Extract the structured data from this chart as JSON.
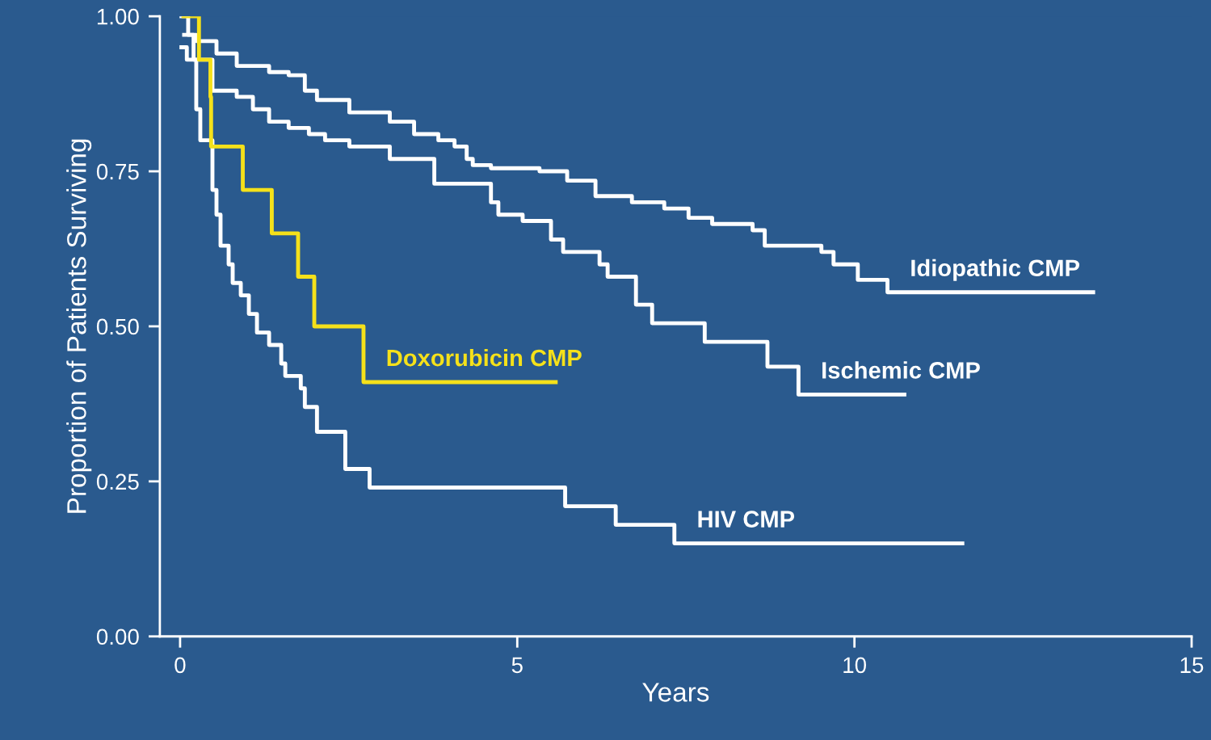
{
  "chart_data": {
    "type": "step",
    "xlabel": "Years",
    "ylabel": "Proportion of Patients Surviving",
    "xlim": [
      -0.3,
      15
    ],
    "ylim": [
      0,
      1.0
    ],
    "xticks": [
      0,
      5,
      10,
      15
    ],
    "yticks": [
      {
        "value": 0,
        "label": "0.00"
      },
      {
        "value": 0.25,
        "label": "0.25"
      },
      {
        "value": 0.5,
        "label": "0.50"
      },
      {
        "value": 0.75,
        "label": "0.75"
      },
      {
        "value": 1.0,
        "label": "1.00"
      }
    ],
    "grid": false,
    "line_style": "solid",
    "marker": "none",
    "series": [
      {
        "name": "Doxorubicin CMP",
        "color": "#f5e11a",
        "x": [
          0.05,
          0.28,
          0.45,
          0.46,
          0.93,
          1.36,
          1.75,
          1.99,
          2.72,
          5.57
        ],
        "values": [
          1.0,
          0.93,
          0.87,
          0.79,
          0.72,
          0.65,
          0.58,
          0.5,
          0.41,
          0.41
        ]
      },
      {
        "name": "Idiopathic CMP",
        "color": "#ffffff",
        "x": [
          0.02,
          0.12,
          0.24,
          0.54,
          0.84,
          1.32,
          1.61,
          1.85,
          2.03,
          2.51,
          3.11,
          3.47,
          3.83,
          4.07,
          4.25,
          4.34,
          4.61,
          5.33,
          5.74,
          6.16,
          6.7,
          7.18,
          7.54,
          7.89,
          8.49,
          8.67,
          9.51,
          9.69,
          10.05,
          10.49,
          13.54
        ],
        "values": [
          1.0,
          0.97,
          0.96,
          0.94,
          0.92,
          0.91,
          0.905,
          0.88,
          0.865,
          0.845,
          0.83,
          0.81,
          0.8,
          0.79,
          0.77,
          0.76,
          0.755,
          0.75,
          0.735,
          0.71,
          0.7,
          0.69,
          0.675,
          0.665,
          0.655,
          0.63,
          0.62,
          0.6,
          0.575,
          0.555,
          0.555
        ]
      },
      {
        "name": "Ischemic CMP",
        "color": "#ffffff",
        "x": [
          0.06,
          0.2,
          0.48,
          0.84,
          1.08,
          1.32,
          1.61,
          1.91,
          2.15,
          2.51,
          3.11,
          3.77,
          4.61,
          4.72,
          5.08,
          5.5,
          5.68,
          6.22,
          6.34,
          6.76,
          7.0,
          7.78,
          8.71,
          9.17,
          10.74
        ],
        "values": [
          0.97,
          0.93,
          0.88,
          0.87,
          0.85,
          0.83,
          0.82,
          0.81,
          0.8,
          0.79,
          0.77,
          0.73,
          0.7,
          0.68,
          0.67,
          0.64,
          0.62,
          0.6,
          0.58,
          0.535,
          0.505,
          0.475,
          0.435,
          0.39,
          0.39
        ]
      },
      {
        "name": "HIV CMP",
        "color": "#ffffff",
        "x": [
          0.02,
          0.1,
          0.24,
          0.3,
          0.48,
          0.54,
          0.6,
          0.72,
          0.78,
          0.9,
          1.02,
          1.14,
          1.32,
          1.5,
          1.56,
          1.79,
          1.85,
          2.03,
          2.45,
          2.81,
          5.71,
          6.46,
          7.33,
          11.6
        ],
        "values": [
          0.95,
          0.93,
          0.85,
          0.8,
          0.72,
          0.68,
          0.63,
          0.6,
          0.57,
          0.55,
          0.52,
          0.49,
          0.47,
          0.44,
          0.42,
          0.4,
          0.37,
          0.33,
          0.27,
          0.24,
          0.21,
          0.18,
          0.15,
          0.15
        ]
      }
    ]
  }
}
